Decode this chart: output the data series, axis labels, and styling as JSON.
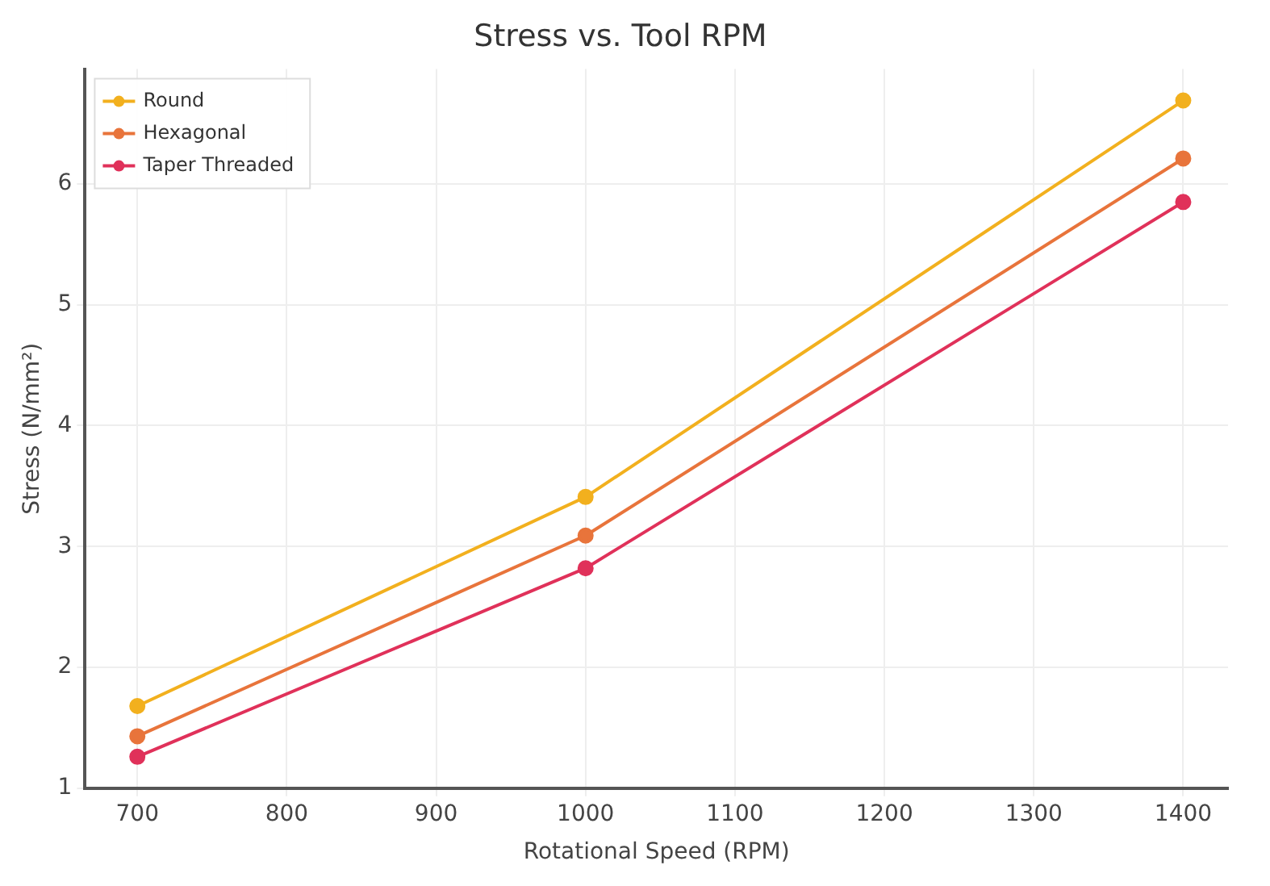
{
  "chart_data": {
    "type": "line",
    "title": "Stress vs. Tool RPM",
    "xlabel": "Rotational Speed (RPM)",
    "ylabel": "Stress (N/mm²)",
    "x": [
      700,
      1000,
      1400
    ],
    "series": [
      {
        "name": "Round",
        "color": "#f2b01e",
        "values": [
          1.68,
          3.41,
          6.69
        ]
      },
      {
        "name": "Hexagonal",
        "color": "#e8743b",
        "values": [
          1.43,
          3.09,
          6.21
        ]
      },
      {
        "name": "Taper Threaded",
        "color": "#e0315a",
        "values": [
          1.26,
          2.82,
          5.85
        ]
      }
    ],
    "xlim": [
      665,
      1430
    ],
    "xticks": [
      700,
      800,
      900,
      1000,
      1100,
      1200,
      1300,
      1400
    ],
    "ylim": [
      1,
      6.95
    ],
    "yticks": [
      1,
      2,
      3,
      4,
      5,
      6
    ],
    "grid": true,
    "legend": "top left",
    "marker": "circle",
    "line_style": "solid"
  }
}
